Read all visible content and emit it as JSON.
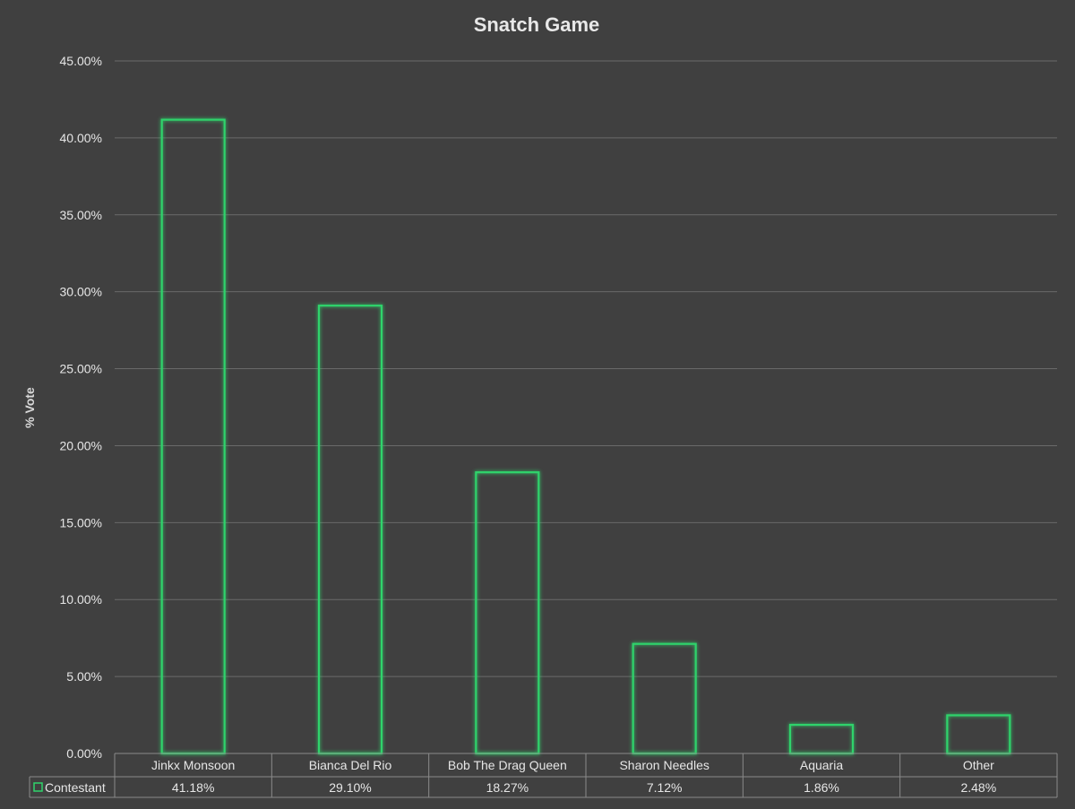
{
  "chart_data": {
    "type": "bar",
    "title": "Snatch Game",
    "ylabel": "% Vote",
    "xlabel": "",
    "ylim": [
      0,
      45
    ],
    "ytick_step": 5,
    "ytick_labels": [
      "0.00%",
      "5.00%",
      "10.00%",
      "15.00%",
      "20.00%",
      "25.00%",
      "30.00%",
      "35.00%",
      "40.00%",
      "45.00%"
    ],
    "grid": true,
    "categories": [
      "Jinkx Monsoon",
      "Bianca Del Rio",
      "Bob The Drag Queen",
      "Sharon Needles",
      "Aquaria",
      "Other"
    ],
    "series": [
      {
        "name": "Contestant",
        "values": [
          41.18,
          29.1,
          18.27,
          7.12,
          1.86,
          2.48
        ],
        "value_labels": [
          "41.18%",
          "29.10%",
          "18.27%",
          "7.12%",
          "1.86%",
          "2.48%"
        ],
        "color": "#2fd36b"
      }
    ],
    "legend": "data-table-left"
  }
}
